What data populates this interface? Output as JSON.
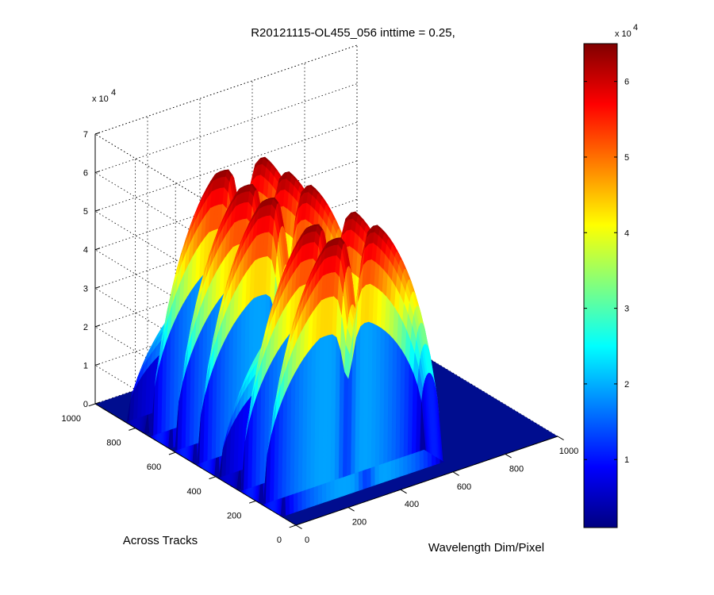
{
  "chart_data": {
    "type": "surface",
    "title": "R20121115-OL455_056 inttime = 0.25,",
    "xlabel": "Wavelength Dim/Pixel",
    "ylabel": "Across Tracks",
    "zlabel": "",
    "x_ticks": [
      "0",
      "200",
      "400",
      "600",
      "800",
      "1000"
    ],
    "y_ticks": [
      "0",
      "200",
      "400",
      "600",
      "800",
      "1000"
    ],
    "z_ticks": [
      "0",
      "1",
      "2",
      "3",
      "4",
      "5",
      "6",
      "7"
    ],
    "z_multiplier": "x 10",
    "z_exponent": "4",
    "xlim": [
      0,
      1000
    ],
    "ylim": [
      0,
      1000
    ],
    "zlim": [
      0,
      70000
    ],
    "colormap": "jet",
    "colorbar": {
      "ticks": [
        "1",
        "2",
        "3",
        "4",
        "5",
        "6"
      ],
      "multiplier": "x 10",
      "exponent": "4",
      "range": [
        1000,
        65000
      ]
    },
    "ridges": [
      {
        "across_track": 120,
        "peak": 65000
      },
      {
        "across_track": 230,
        "peak": 65000
      },
      {
        "across_track": 340,
        "peak": 38000
      },
      {
        "across_track": 450,
        "peak": 65000
      },
      {
        "across_track": 560,
        "peak": 65000
      },
      {
        "across_track": 680,
        "peak": 65000
      },
      {
        "across_track": 800,
        "peak": 30000
      }
    ],
    "wavelength_extent": [
      0,
      620
    ],
    "grid": true
  }
}
